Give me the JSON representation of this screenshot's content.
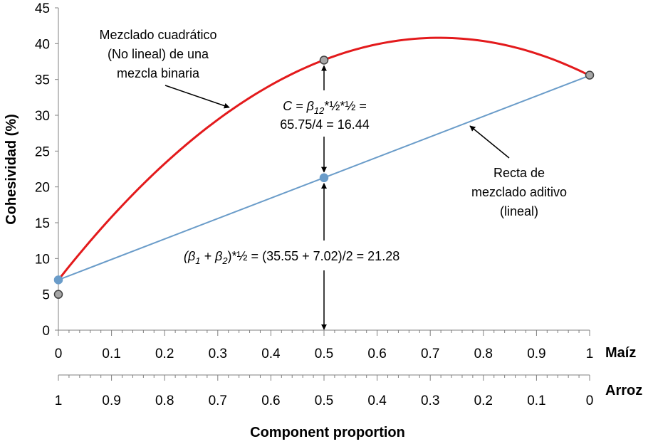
{
  "chart_data": {
    "type": "line",
    "title": "",
    "ylabel": "Cohesividad (%)",
    "xlabel": "Component proportion",
    "ylim": [
      0,
      45
    ],
    "yticks": [
      0,
      5,
      10,
      15,
      20,
      25,
      30,
      35,
      40,
      45
    ],
    "xlim": [
      0,
      1
    ],
    "x_axes": [
      {
        "name": "Maíz",
        "ticks": [
          0,
          0.1,
          0.2,
          0.3,
          0.4,
          0.5,
          0.6,
          0.7,
          0.8,
          0.9,
          1
        ],
        "labels": [
          "0",
          "0.1",
          "0.2",
          "0.3",
          "0.4",
          "0.5",
          "0.6",
          "0.7",
          "0.8",
          "0.9",
          "1"
        ]
      },
      {
        "name": "Arroz",
        "ticks": [
          0,
          0.1,
          0.2,
          0.3,
          0.4,
          0.5,
          0.6,
          0.7,
          0.8,
          0.9,
          1
        ],
        "labels": [
          "1",
          "0.9",
          "0.8",
          "0.7",
          "0.6",
          "0.5",
          "0.4",
          "0.3",
          "0.2",
          "0.1",
          "0"
        ]
      }
    ],
    "series": [
      {
        "name": "Mezclado cuadrático (No lineal)",
        "color": "#e31a1c",
        "model": "quadratic",
        "beta1": 7.02,
        "beta2": 35.55,
        "beta12": 65.75
      },
      {
        "name": "Recta de mezclado aditivo (lineal)",
        "color": "#6a9cc9",
        "model": "linear",
        "start": 7.02,
        "end": 35.55
      }
    ],
    "points": [
      {
        "name": "observed-x0",
        "x": 0,
        "y": 5.0,
        "color": "#a6a6a6"
      },
      {
        "name": "observed-x05",
        "x": 0.5,
        "y": 37.7,
        "color": "#a6a6a6"
      },
      {
        "name": "observed-x1",
        "x": 1,
        "y": 35.6,
        "color": "#a6a6a6"
      },
      {
        "name": "linear-start",
        "x": 0,
        "y": 7.02,
        "color": "#6a9cc9"
      },
      {
        "name": "linear-mid",
        "x": 0.5,
        "y": 21.28,
        "color": "#6a9cc9"
      }
    ],
    "annotations": {
      "quad_title": [
        "Mezclado cuadrático",
        "(No lineal) de una",
        "mezcla binaria"
      ],
      "lin_title": [
        "Recta de",
        "mezclado aditivo",
        "(lineal)"
      ],
      "c_line1_prefix": "C = β",
      "c_line1_sub": "12",
      "c_line1_suffix": "*½*½ =",
      "c_line2": "65.75/4 = 16.44",
      "formula_open": "(β",
      "formula_sub1": "1",
      "formula_plus": " + β",
      "formula_sub2": "2",
      "formula_rest": ")*½ = (35.55 + 7.02)/2 = 21.28"
    }
  }
}
